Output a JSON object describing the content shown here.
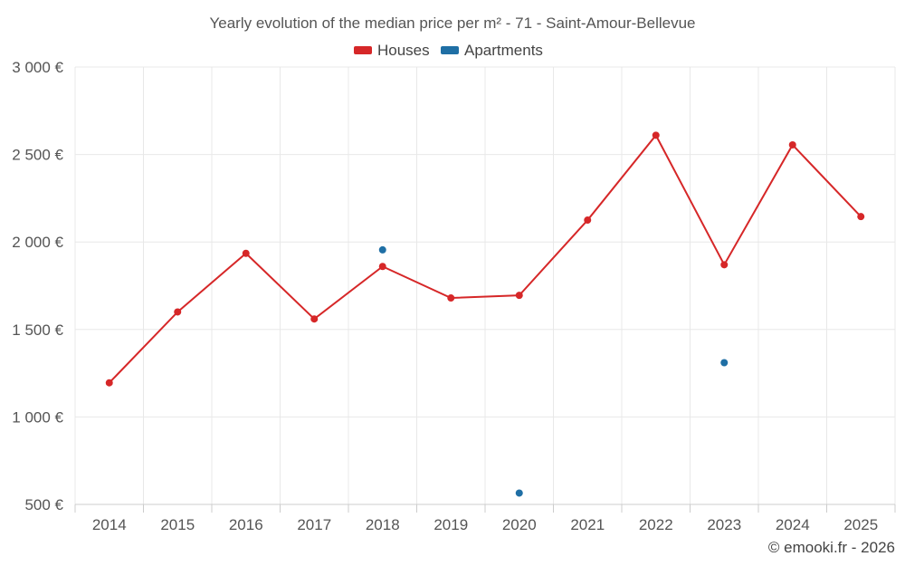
{
  "chart_data": {
    "type": "line",
    "title": "Yearly evolution of the median price per m² - 71 - Saint-Amour-Bellevue",
    "categories": [
      "2014",
      "2015",
      "2016",
      "2017",
      "2018",
      "2019",
      "2020",
      "2021",
      "2022",
      "2023",
      "2024",
      "2025"
    ],
    "y_tick_values": [
      500,
      1000,
      1500,
      2000,
      2500,
      3000
    ],
    "y_tick_labels": [
      "500 €",
      "1 000 €",
      "1 500 €",
      "2 000 €",
      "2 500 €",
      "3 000 €"
    ],
    "ylim": [
      500,
      3000
    ],
    "xlabel": "",
    "ylabel": "",
    "grid": true,
    "legend_position": "top-center",
    "series": [
      {
        "name": "Houses",
        "color": "#d62728",
        "style": "line-with-markers",
        "values": [
          1195,
          1600,
          1935,
          1560,
          1860,
          1680,
          1695,
          2125,
          2610,
          1870,
          2555,
          2145
        ]
      },
      {
        "name": "Apartments",
        "color": "#1f6fa5",
        "style": "markers-only",
        "values": [
          null,
          null,
          null,
          null,
          1955,
          null,
          565,
          null,
          null,
          1310,
          null,
          null
        ]
      }
    ]
  },
  "credit": "© emooki.fr - 2026"
}
